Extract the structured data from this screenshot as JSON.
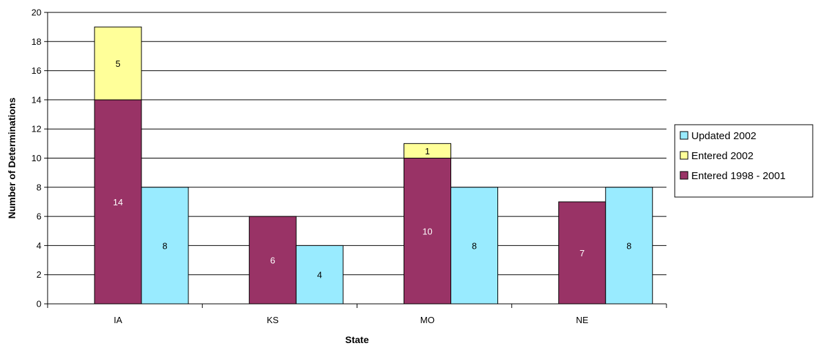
{
  "chart_data": {
    "type": "bar",
    "stacked_groups": true,
    "categories": [
      "IA",
      "KS",
      "MO",
      "NE"
    ],
    "series": [
      {
        "name": "Entered 1998 - 2001",
        "values": [
          14,
          6,
          10,
          7
        ],
        "color": "#993366",
        "label_color": "#ffffff",
        "stack": "entered"
      },
      {
        "name": "Entered 2002",
        "values": [
          5,
          0,
          1,
          0
        ],
        "color": "#ffff99",
        "label_color": "#000000",
        "stack": "entered"
      },
      {
        "name": "Updated 2002",
        "values": [
          8,
          4,
          8,
          8
        ],
        "color": "#99ebff",
        "label_color": "#000000",
        "stack": "updated"
      }
    ],
    "legend_order": [
      "Updated 2002",
      "Entered 2002",
      "Entered 1998 - 2001"
    ],
    "legend_position": "right",
    "xlabel": "State",
    "ylabel": "Number of Determinations",
    "ylim": [
      0,
      20
    ],
    "yticks": [
      0,
      2,
      4,
      6,
      8,
      10,
      12,
      14,
      16,
      18,
      20
    ],
    "grid": true
  }
}
